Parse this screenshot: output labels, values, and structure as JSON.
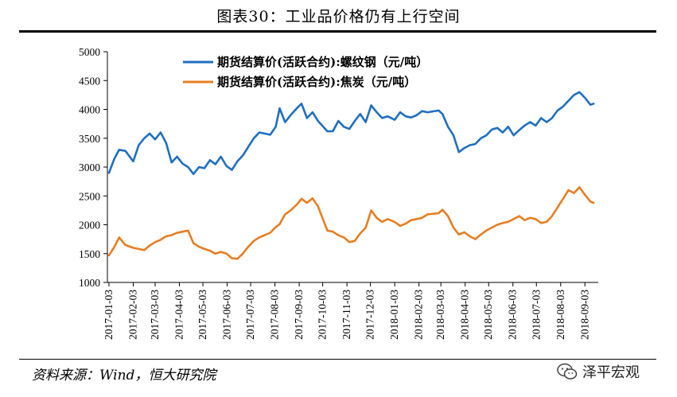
{
  "header": {
    "title": "图表30：工业品价格仍有上行空间"
  },
  "footer": {
    "source": "资料来源：Wind，恒大研究院",
    "watermark_text": "泽平宏观",
    "watermark_icon": "wechat-icon"
  },
  "chart_data": {
    "type": "line",
    "ylim": [
      1000,
      5000
    ],
    "yticks": [
      1000,
      1500,
      2000,
      2500,
      3000,
      3500,
      4000,
      4500,
      5000
    ],
    "xlim": [
      "2017-01-01",
      "2018-09-20"
    ],
    "xticks": [
      "2017-01-03",
      "2017-02-03",
      "2017-03-03",
      "2017-04-03",
      "2017-05-03",
      "2017-06-03",
      "2017-07-03",
      "2017-08-03",
      "2017-09-03",
      "2017-10-03",
      "2017-11-03",
      "2017-12-03",
      "2018-01-03",
      "2018-02-03",
      "2018-03-03",
      "2018-04-03",
      "2018-05-03",
      "2018-06-03",
      "2018-07-03",
      "2018-08-03",
      "2018-09-03"
    ],
    "grid": false,
    "legend_position": "top-center",
    "series": [
      {
        "name": "期货结算价(活跃合约):螺纹钢（元/吨）",
        "color": "#1f6fbf",
        "points": [
          [
            "2017-01-03",
            2900
          ],
          [
            "2017-01-10",
            3150
          ],
          [
            "2017-01-16",
            3300
          ],
          [
            "2017-01-24",
            3280
          ],
          [
            "2017-02-03",
            3100
          ],
          [
            "2017-02-10",
            3380
          ],
          [
            "2017-02-17",
            3500
          ],
          [
            "2017-02-24",
            3580
          ],
          [
            "2017-03-03",
            3480
          ],
          [
            "2017-03-10",
            3600
          ],
          [
            "2017-03-17",
            3420
          ],
          [
            "2017-03-24",
            3080
          ],
          [
            "2017-03-31",
            3180
          ],
          [
            "2017-04-07",
            3060
          ],
          [
            "2017-04-14",
            3000
          ],
          [
            "2017-04-21",
            2880
          ],
          [
            "2017-04-28",
            3000
          ],
          [
            "2017-05-05",
            2980
          ],
          [
            "2017-05-12",
            3120
          ],
          [
            "2017-05-19",
            3050
          ],
          [
            "2017-05-26",
            3180
          ],
          [
            "2017-06-02",
            3020
          ],
          [
            "2017-06-09",
            2950
          ],
          [
            "2017-06-16",
            3100
          ],
          [
            "2017-06-23",
            3200
          ],
          [
            "2017-06-30",
            3350
          ],
          [
            "2017-07-07",
            3500
          ],
          [
            "2017-07-14",
            3600
          ],
          [
            "2017-07-21",
            3580
          ],
          [
            "2017-07-28",
            3560
          ],
          [
            "2017-08-04",
            3700
          ],
          [
            "2017-08-09",
            4020
          ],
          [
            "2017-08-16",
            3780
          ],
          [
            "2017-08-23",
            3900
          ],
          [
            "2017-08-31",
            4020
          ],
          [
            "2017-09-06",
            4100
          ],
          [
            "2017-09-13",
            3850
          ],
          [
            "2017-09-20",
            3950
          ],
          [
            "2017-09-27",
            3800
          ],
          [
            "2017-10-09",
            3620
          ],
          [
            "2017-10-16",
            3620
          ],
          [
            "2017-10-23",
            3800
          ],
          [
            "2017-10-30",
            3700
          ],
          [
            "2017-11-06",
            3660
          ],
          [
            "2017-11-13",
            3800
          ],
          [
            "2017-11-20",
            3920
          ],
          [
            "2017-11-27",
            3780
          ],
          [
            "2017-12-04",
            4070
          ],
          [
            "2017-12-11",
            3950
          ],
          [
            "2017-12-18",
            3850
          ],
          [
            "2017-12-25",
            3880
          ],
          [
            "2018-01-03",
            3820
          ],
          [
            "2018-01-10",
            3950
          ],
          [
            "2018-01-17",
            3880
          ],
          [
            "2018-01-24",
            3860
          ],
          [
            "2018-01-31",
            3900
          ],
          [
            "2018-02-07",
            3970
          ],
          [
            "2018-02-14",
            3950
          ],
          [
            "2018-02-28",
            3980
          ],
          [
            "2018-03-05",
            3920
          ],
          [
            "2018-03-12",
            3700
          ],
          [
            "2018-03-19",
            3550
          ],
          [
            "2018-03-26",
            3260
          ],
          [
            "2018-04-02",
            3330
          ],
          [
            "2018-04-09",
            3380
          ],
          [
            "2018-04-16",
            3400
          ],
          [
            "2018-04-23",
            3500
          ],
          [
            "2018-04-30",
            3550
          ],
          [
            "2018-05-07",
            3650
          ],
          [
            "2018-05-14",
            3680
          ],
          [
            "2018-05-21",
            3600
          ],
          [
            "2018-05-28",
            3700
          ],
          [
            "2018-06-04",
            3550
          ],
          [
            "2018-06-11",
            3640
          ],
          [
            "2018-06-18",
            3720
          ],
          [
            "2018-06-25",
            3780
          ],
          [
            "2018-07-02",
            3720
          ],
          [
            "2018-07-09",
            3850
          ],
          [
            "2018-07-16",
            3780
          ],
          [
            "2018-07-23",
            3850
          ],
          [
            "2018-07-30",
            3980
          ],
          [
            "2018-08-06",
            4050
          ],
          [
            "2018-08-13",
            4150
          ],
          [
            "2018-08-20",
            4250
          ],
          [
            "2018-08-27",
            4300
          ],
          [
            "2018-09-03",
            4200
          ],
          [
            "2018-09-10",
            4080
          ],
          [
            "2018-09-14",
            4100
          ]
        ]
      },
      {
        "name": "期货结算价(活跃合约):焦炭（元/吨）",
        "color": "#e67e22",
        "points": [
          [
            "2017-01-03",
            1470
          ],
          [
            "2017-01-10",
            1620
          ],
          [
            "2017-01-16",
            1780
          ],
          [
            "2017-01-24",
            1650
          ],
          [
            "2017-02-03",
            1600
          ],
          [
            "2017-02-10",
            1580
          ],
          [
            "2017-02-17",
            1560
          ],
          [
            "2017-02-24",
            1640
          ],
          [
            "2017-03-03",
            1700
          ],
          [
            "2017-03-10",
            1740
          ],
          [
            "2017-03-17",
            1800
          ],
          [
            "2017-03-24",
            1820
          ],
          [
            "2017-03-31",
            1860
          ],
          [
            "2017-04-07",
            1880
          ],
          [
            "2017-04-14",
            1900
          ],
          [
            "2017-04-21",
            1680
          ],
          [
            "2017-04-28",
            1620
          ],
          [
            "2017-05-05",
            1580
          ],
          [
            "2017-05-12",
            1550
          ],
          [
            "2017-05-19",
            1500
          ],
          [
            "2017-05-26",
            1530
          ],
          [
            "2017-06-02",
            1500
          ],
          [
            "2017-06-09",
            1420
          ],
          [
            "2017-06-16",
            1410
          ],
          [
            "2017-06-23",
            1500
          ],
          [
            "2017-06-30",
            1620
          ],
          [
            "2017-07-07",
            1720
          ],
          [
            "2017-07-14",
            1780
          ],
          [
            "2017-07-21",
            1820
          ],
          [
            "2017-07-28",
            1860
          ],
          [
            "2017-08-04",
            1960
          ],
          [
            "2017-08-09",
            2010
          ],
          [
            "2017-08-16",
            2180
          ],
          [
            "2017-08-23",
            2250
          ],
          [
            "2017-08-31",
            2350
          ],
          [
            "2017-09-06",
            2450
          ],
          [
            "2017-09-13",
            2380
          ],
          [
            "2017-09-20",
            2460
          ],
          [
            "2017-09-27",
            2320
          ],
          [
            "2017-10-09",
            1900
          ],
          [
            "2017-10-16",
            1880
          ],
          [
            "2017-10-23",
            1820
          ],
          [
            "2017-10-30",
            1780
          ],
          [
            "2017-11-06",
            1700
          ],
          [
            "2017-11-13",
            1720
          ],
          [
            "2017-11-20",
            1850
          ],
          [
            "2017-11-27",
            1950
          ],
          [
            "2017-12-04",
            2250
          ],
          [
            "2017-12-11",
            2120
          ],
          [
            "2017-12-18",
            2050
          ],
          [
            "2017-12-25",
            2100
          ],
          [
            "2018-01-03",
            2050
          ],
          [
            "2018-01-10",
            1980
          ],
          [
            "2018-01-17",
            2020
          ],
          [
            "2018-01-24",
            2080
          ],
          [
            "2018-01-31",
            2100
          ],
          [
            "2018-02-07",
            2120
          ],
          [
            "2018-02-14",
            2180
          ],
          [
            "2018-02-28",
            2200
          ],
          [
            "2018-03-05",
            2260
          ],
          [
            "2018-03-12",
            2150
          ],
          [
            "2018-03-19",
            1950
          ],
          [
            "2018-03-26",
            1830
          ],
          [
            "2018-04-02",
            1870
          ],
          [
            "2018-04-09",
            1800
          ],
          [
            "2018-04-16",
            1750
          ],
          [
            "2018-04-23",
            1830
          ],
          [
            "2018-04-30",
            1900
          ],
          [
            "2018-05-07",
            1950
          ],
          [
            "2018-05-14",
            2000
          ],
          [
            "2018-05-21",
            2030
          ],
          [
            "2018-05-28",
            2050
          ],
          [
            "2018-06-04",
            2100
          ],
          [
            "2018-06-11",
            2150
          ],
          [
            "2018-06-18",
            2080
          ],
          [
            "2018-06-25",
            2120
          ],
          [
            "2018-07-02",
            2100
          ],
          [
            "2018-07-09",
            2030
          ],
          [
            "2018-07-16",
            2050
          ],
          [
            "2018-07-23",
            2150
          ],
          [
            "2018-07-30",
            2300
          ],
          [
            "2018-08-06",
            2450
          ],
          [
            "2018-08-13",
            2600
          ],
          [
            "2018-08-20",
            2550
          ],
          [
            "2018-08-27",
            2650
          ],
          [
            "2018-09-03",
            2520
          ],
          [
            "2018-09-10",
            2400
          ],
          [
            "2018-09-14",
            2380
          ]
        ]
      }
    ]
  }
}
